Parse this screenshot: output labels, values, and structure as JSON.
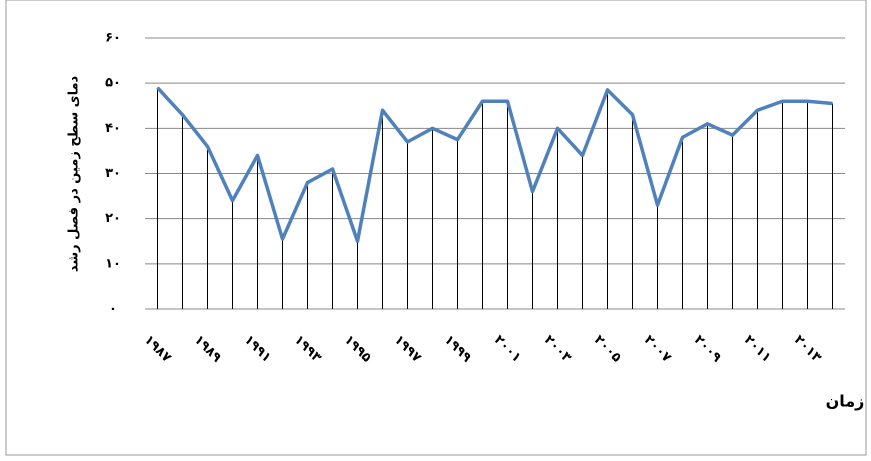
{
  "chart_data": {
    "type": "line",
    "y_label": "دمای سطح زمین در فصل رشد",
    "x_label": "زمان",
    "categories": [
      "۱۹۸۷",
      null,
      "۱۹۸۹",
      null,
      "۱۹۹۱",
      null,
      "۱۹۹۳",
      null,
      "۱۹۹۵",
      null,
      "۱۹۹۷",
      null,
      "۱۹۹۹",
      null,
      "۲۰۰۱",
      null,
      "۲۰۰۳",
      null,
      "۲۰۰۵",
      null,
      "۲۰۰۷",
      null,
      "۲۰۰۹",
      null,
      "۲۰۱۱",
      null,
      "۲۰۱۳",
      null
    ],
    "values": [
      49,
      43,
      36,
      24,
      34,
      15.5,
      28,
      31,
      15,
      44,
      37,
      40,
      37.5,
      46,
      46,
      26,
      40,
      34,
      48.5,
      43,
      23,
      38,
      41,
      38.5,
      44,
      46,
      46,
      45.5
    ],
    "color": "#4f81bd",
    "ylim": [
      0,
      60
    ],
    "yticks": [
      {
        "value": 0,
        "label": "۰"
      },
      {
        "value": 10,
        "label": "۱۰"
      },
      {
        "value": 20,
        "label": "۲۰"
      },
      {
        "value": 30,
        "label": "۳۰"
      },
      {
        "value": 40,
        "label": "۴۰"
      },
      {
        "value": 50,
        "label": "۵۰"
      },
      {
        "value": 60,
        "label": "۶۰"
      }
    ],
    "grid": true,
    "drop_lines": true
  }
}
